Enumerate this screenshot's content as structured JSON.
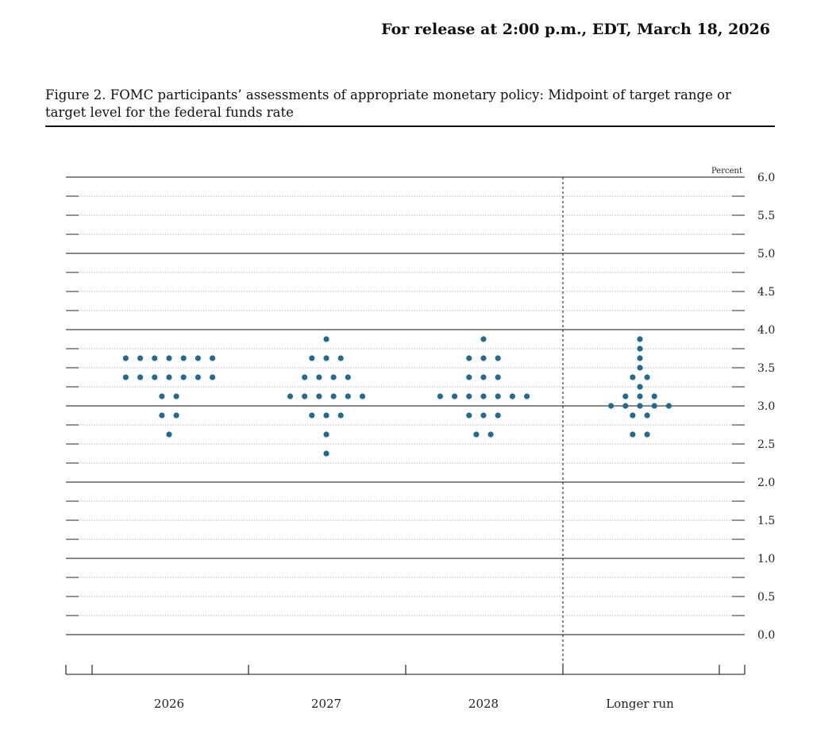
{
  "header": {
    "release": "For release at 2:00 p.m., EDT, March 18, 2026",
    "figure_title": "Figure 2. FOMC participants’ assessments of appropriate monetary policy: Midpoint of target range or target level for the federal funds rate"
  },
  "colors": {
    "dot": "#1f6b94",
    "rule": "#111111",
    "grid": "#888888"
  },
  "chart_data": {
    "type": "scatter",
    "ylabel": "Percent",
    "ylim": [
      0.0,
      6.0
    ],
    "y_ticks": [
      "0.0",
      "0.5",
      "1.0",
      "1.5",
      "2.0",
      "2.5",
      "3.0",
      "3.5",
      "4.0",
      "4.5",
      "5.0",
      "5.5",
      "6.0"
    ],
    "categories": [
      "2026",
      "2027",
      "2028",
      "Longer run"
    ],
    "separator_before": "Longer run",
    "grid": true,
    "dots": [
      {
        "category": "2026",
        "rows": [
          {
            "y": 3.625,
            "count": 7
          },
          {
            "y": 3.375,
            "count": 7
          },
          {
            "y": 3.125,
            "count": 2
          },
          {
            "y": 2.875,
            "count": 2
          },
          {
            "y": 2.625,
            "count": 1
          }
        ]
      },
      {
        "category": "2027",
        "rows": [
          {
            "y": 3.875,
            "count": 1
          },
          {
            "y": 3.625,
            "count": 3
          },
          {
            "y": 3.375,
            "count": 4
          },
          {
            "y": 3.125,
            "count": 6
          },
          {
            "y": 2.875,
            "count": 3
          },
          {
            "y": 2.625,
            "count": 1
          },
          {
            "y": 2.375,
            "count": 1
          }
        ]
      },
      {
        "category": "2028",
        "rows": [
          {
            "y": 3.875,
            "count": 1
          },
          {
            "y": 3.625,
            "count": 3
          },
          {
            "y": 3.375,
            "count": 3
          },
          {
            "y": 3.125,
            "count": 7
          },
          {
            "y": 2.875,
            "count": 3
          },
          {
            "y": 2.625,
            "count": 2
          }
        ]
      },
      {
        "category": "Longer run",
        "rows": [
          {
            "y": 3.875,
            "count": 1
          },
          {
            "y": 3.75,
            "count": 1
          },
          {
            "y": 3.625,
            "count": 1
          },
          {
            "y": 3.5,
            "count": 1
          },
          {
            "y": 3.375,
            "count": 2
          },
          {
            "y": 3.25,
            "count": 1
          },
          {
            "y": 3.125,
            "count": 3
          },
          {
            "y": 3.0,
            "count": 5
          },
          {
            "y": 2.875,
            "count": 2
          },
          {
            "y": 2.625,
            "count": 2
          }
        ]
      }
    ]
  }
}
